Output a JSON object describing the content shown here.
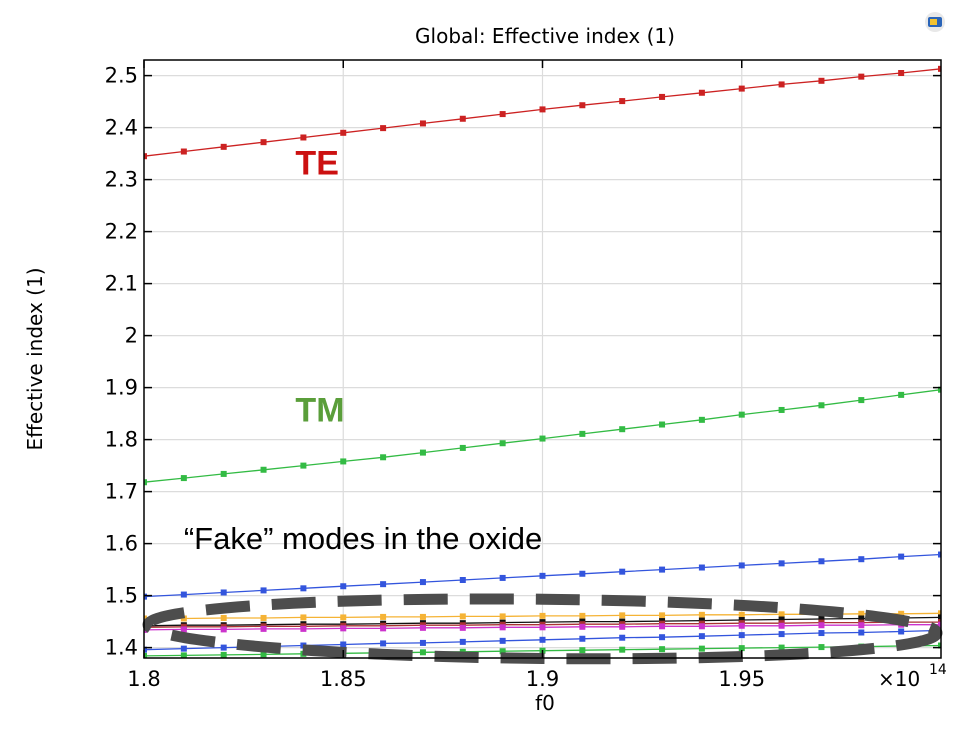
{
  "chart_data": {
    "type": "line",
    "title": "Global: Effective index (1)",
    "xlabel": "f0",
    "ylabel": "Effective index (1)",
    "x_multiplier_label": "×10",
    "x_multiplier_exponent": "14",
    "xlim": [
      1.8,
      2.0
    ],
    "ylim": [
      1.38,
      2.53
    ],
    "x_ticks": [
      1.8,
      1.85,
      1.9,
      1.95
    ],
    "x_tick_labels": [
      "1.8",
      "1.85",
      "1.9",
      "1.95"
    ],
    "y_ticks": [
      1.4,
      1.5,
      1.6,
      1.7,
      1.8,
      1.9,
      2.0,
      2.1,
      2.2,
      2.3,
      2.4,
      2.5
    ],
    "y_tick_labels": [
      "1.4",
      "1.5",
      "1.6",
      "1.7",
      "1.8",
      "1.9",
      "2",
      "2.1",
      "2.2",
      "2.3",
      "2.4",
      "2.5"
    ],
    "grid": true,
    "x": [
      1.8,
      1.81,
      1.82,
      1.83,
      1.84,
      1.85,
      1.86,
      1.87,
      1.88,
      1.89,
      1.9,
      1.91,
      1.92,
      1.93,
      1.94,
      1.95,
      1.96,
      1.97,
      1.98,
      1.99,
      2.0
    ],
    "series": [
      {
        "color": "#cc2222",
        "values": [
          2.345,
          2.354,
          2.363,
          2.372,
          2.381,
          2.39,
          2.399,
          2.408,
          2.417,
          2.426,
          2.435,
          2.443,
          2.451,
          2.459,
          2.467,
          2.475,
          2.483,
          2.49,
          2.498,
          2.505,
          2.513
        ]
      },
      {
        "color": "#33bb44",
        "values": [
          1.718,
          1.726,
          1.734,
          1.742,
          1.75,
          1.758,
          1.766,
          1.775,
          1.784,
          1.793,
          1.802,
          1.811,
          1.82,
          1.829,
          1.838,
          1.848,
          1.857,
          1.866,
          1.876,
          1.886,
          1.896
        ]
      },
      {
        "color": "#3355dd",
        "values": [
          1.498,
          1.502,
          1.506,
          1.51,
          1.514,
          1.518,
          1.522,
          1.526,
          1.53,
          1.534,
          1.538,
          1.542,
          1.546,
          1.55,
          1.554,
          1.558,
          1.562,
          1.566,
          1.57,
          1.575,
          1.579
        ]
      },
      {
        "color": "#f5b335",
        "values": [
          1.456,
          1.456,
          1.457,
          1.457,
          1.458,
          1.458,
          1.459,
          1.459,
          1.46,
          1.46,
          1.461,
          1.461,
          1.462,
          1.462,
          1.463,
          1.463,
          1.464,
          1.464,
          1.465,
          1.465,
          1.466
        ]
      },
      {
        "color": "#111111",
        "values": [
          1.442,
          1.443,
          1.443,
          1.444,
          1.445,
          1.445,
          1.446,
          1.447,
          1.447,
          1.448,
          1.449,
          1.45,
          1.45,
          1.451,
          1.452,
          1.453,
          1.454,
          1.455,
          1.456,
          1.457,
          1.458
        ]
      },
      {
        "color": "#aa3333",
        "values": [
          1.439,
          1.44,
          1.44,
          1.441,
          1.441,
          1.442,
          1.442,
          1.443,
          1.443,
          1.444,
          1.444,
          1.445,
          1.445,
          1.446,
          1.446,
          1.447,
          1.447,
          1.448,
          1.448,
          1.449,
          1.449
        ]
      },
      {
        "color": "#cc33cc",
        "values": [
          1.434,
          1.435,
          1.435,
          1.436,
          1.436,
          1.437,
          1.437,
          1.438,
          1.438,
          1.439,
          1.439,
          1.44,
          1.44,
          1.441,
          1.441,
          1.442,
          1.442,
          1.443,
          1.443,
          1.444,
          1.444
        ]
      },
      {
        "color": "#3355dd",
        "values": [
          1.396,
          1.398,
          1.4,
          1.402,
          1.404,
          1.406,
          1.408,
          1.409,
          1.411,
          1.413,
          1.415,
          1.417,
          1.419,
          1.42,
          1.422,
          1.424,
          1.426,
          1.428,
          1.429,
          1.431,
          1.433
        ]
      },
      {
        "color": "#33bb44",
        "values": [
          1.384,
          1.385,
          1.386,
          1.387,
          1.388,
          1.389,
          1.39,
          1.391,
          1.392,
          1.393,
          1.394,
          1.395,
          1.396,
          1.397,
          1.398,
          1.399,
          1.4,
          1.401,
          1.402,
          1.403,
          1.404
        ]
      }
    ],
    "annotations": [
      {
        "text": "TE",
        "color": "#cc1111",
        "x": 1.838,
        "y": 2.31
      },
      {
        "text": "TM",
        "color": "#5a9e3a",
        "x": 1.838,
        "y": 1.835
      },
      {
        "text": "“Fake” modes in the oxide",
        "color": "#000000",
        "x": 1.81,
        "y": 1.59
      }
    ],
    "highlight_ellipse": {
      "cx": 1.9,
      "cy": 1.436,
      "rx": 0.099,
      "ry": 0.057,
      "color": "#4d4d4d"
    }
  }
}
